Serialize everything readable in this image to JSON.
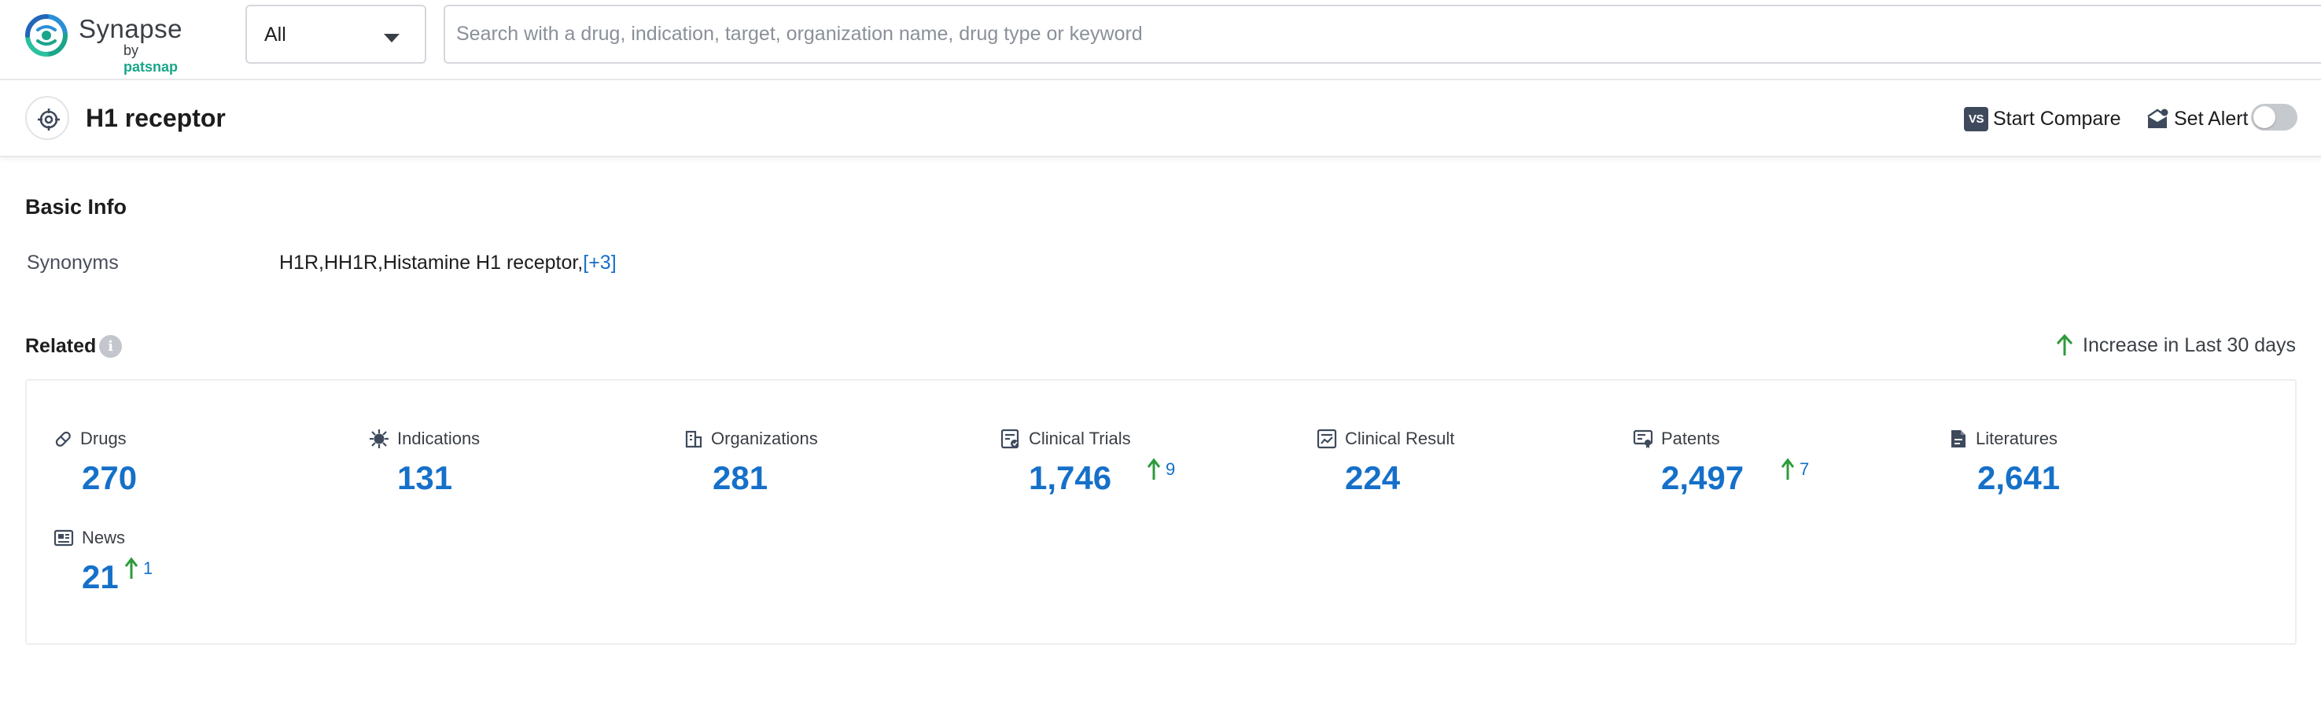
{
  "header": {
    "logo_name": "Synapse",
    "logo_by": "by",
    "logo_brand": "patsnap",
    "scope_value": "All",
    "search_placeholder": "Search with a drug, indication, target, organization name, drug type or keyword"
  },
  "entity": {
    "title": "H1 receptor",
    "start_compare_label": "Start Compare",
    "vs_label": "VS",
    "set_alert_label": "Set Alert",
    "alert_enabled": false
  },
  "basic_info": {
    "title": "Basic Info",
    "synonyms_label": "Synonyms",
    "synonyms_value": "H1R,HH1R,Histamine H1 receptor,",
    "synonyms_more": "[+3]"
  },
  "related": {
    "title": "Related",
    "increase_note": "Increase in Last 30 days",
    "colors": {
      "accent": "#1570c9",
      "increase": "#2c9b3a"
    },
    "items": [
      {
        "name": "Drugs",
        "icon": "pill-icon",
        "value": "270",
        "delta": ""
      },
      {
        "name": "Indications",
        "icon": "virus-icon",
        "value": "131",
        "delta": ""
      },
      {
        "name": "Organizations",
        "icon": "building-icon",
        "value": "281",
        "delta": ""
      },
      {
        "name": "Clinical Trials",
        "icon": "clinical-trials-icon",
        "value": "1,746",
        "delta": "9"
      },
      {
        "name": "Clinical Result",
        "icon": "clinical-result-icon",
        "value": "224",
        "delta": ""
      },
      {
        "name": "Patents",
        "icon": "patent-icon",
        "value": "2,497",
        "delta": "7"
      },
      {
        "name": "Literatures",
        "icon": "document-icon",
        "value": "2,641",
        "delta": ""
      },
      {
        "name": "News",
        "icon": "news-icon",
        "value": "21",
        "delta": "1"
      }
    ]
  }
}
